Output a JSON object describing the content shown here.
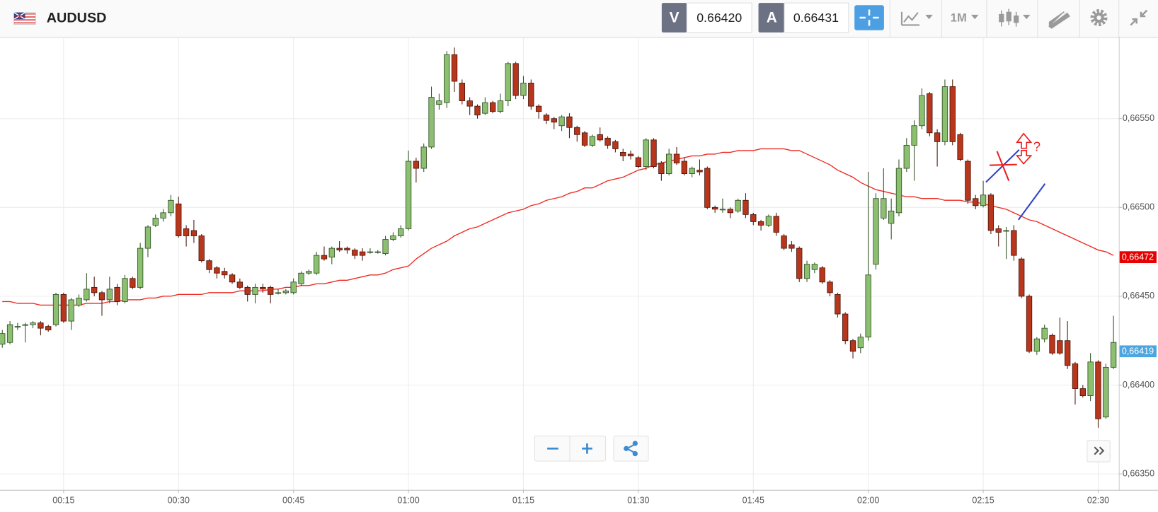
{
  "toolbar": {
    "symbol": "AUDUSD",
    "sell_label": "V",
    "sell_price": "0.66420",
    "buy_label": "A",
    "buy_price": "0.66431",
    "timeframe": "1M"
  },
  "chart_data": {
    "type": "candlestick",
    "categories": [
      null,
      null,
      null,
      null,
      null,
      null,
      null,
      null,
      "00:15",
      null,
      null,
      null,
      null,
      null,
      null,
      null,
      null,
      null,
      null,
      null,
      null,
      null,
      null,
      "00:30",
      null,
      null,
      null,
      null,
      null,
      null,
      null,
      null,
      null,
      null,
      null,
      null,
      null,
      null,
      "00:45",
      null,
      null,
      null,
      null,
      null,
      null,
      null,
      null,
      null,
      null,
      null,
      null,
      null,
      null,
      "01:00",
      null,
      null,
      null,
      null,
      null,
      null,
      null,
      null,
      null,
      null,
      null,
      null,
      null,
      null,
      "01:15",
      null,
      null,
      null,
      null,
      null,
      null,
      null,
      null,
      null,
      null,
      null,
      null,
      null,
      null,
      "01:30",
      null,
      null,
      null,
      null,
      null,
      null,
      null,
      null,
      null,
      null,
      null,
      null,
      null,
      null,
      "01:45",
      null,
      null,
      null,
      null,
      null,
      null,
      null,
      null,
      null,
      null,
      null,
      null,
      null,
      null,
      "02:00",
      null,
      null,
      null,
      null,
      null,
      null,
      null,
      null,
      null,
      null,
      null,
      null,
      null,
      null,
      "02:15",
      null,
      null,
      null,
      null,
      null,
      null,
      null,
      null,
      null,
      null,
      null,
      null,
      null,
      null,
      "02:30",
      null,
      null
    ],
    "open": [
      0.66423,
      0.66424,
      0.66433,
      0.66434,
      0.66434,
      0.66435,
      0.66433,
      0.66434,
      0.66451,
      0.66436,
      0.66445,
      0.66448,
      0.66455,
      0.66452,
      0.66448,
      0.66455,
      0.66447,
      0.6646,
      0.66455,
      0.66477,
      0.6649,
      0.66494,
      0.66497,
      0.66502,
      0.66488,
      0.66487,
      0.66484,
      0.6647,
      0.66466,
      0.66464,
      0.66462,
      0.66458,
      0.66455,
      0.66451,
      0.66455,
      0.66455,
      0.66452,
      0.66452,
      0.66452,
      0.66457,
      0.66463,
      0.66463,
      0.66473,
      0.66472,
      0.66477,
      0.66477,
      0.66476,
      0.66475,
      0.66475,
      0.66475,
      0.66474,
      0.66482,
      0.66484,
      0.66488,
      0.66526,
      0.66522,
      0.66534,
      0.66558,
      0.66559,
      0.66586,
      0.6657,
      0.6656,
      0.66557,
      0.66553,
      0.66559,
      0.66554,
      0.6656,
      0.66581,
      0.66563,
      0.6657,
      0.66557,
      0.66552,
      0.6655,
      0.66546,
      0.66551,
      0.66545,
      0.66542,
      0.66535,
      0.66541,
      0.66539,
      0.66537,
      0.66531,
      0.6653,
      0.66528,
      0.66523,
      0.66538,
      0.66525,
      0.66519,
      0.6653,
      0.66526,
      0.66519,
      0.66521,
      0.66522,
      0.665,
      0.66499,
      0.66499,
      0.66498,
      0.66504,
      0.66496,
      0.66492,
      0.6649,
      0.66495,
      0.66484,
      0.66479,
      0.66477,
      0.6646,
      0.66465,
      0.66466,
      0.66458,
      0.66451,
      0.6644,
      0.66425,
      0.66421,
      0.66427,
      0.66468,
      0.66494,
      0.66491,
      0.66497,
      0.66522,
      0.66535,
      0.66546,
      0.66564,
      0.66542,
      0.66537,
      0.66568,
      0.66541,
      0.66526,
      0.66505,
      0.66501,
      0.66507,
      0.66488,
      0.66487,
      0.66487,
      0.66471,
      0.6645,
      0.66419,
      0.66426,
      0.66428,
      0.66425,
      0.66425,
      0.66412,
      0.66398,
      0.66394,
      0.66413,
      0.66382,
      0.6641
    ],
    "high": [
      0.66431,
      0.66436,
      0.66435,
      0.66435,
      0.66436,
      0.66436,
      0.66434,
      0.66452,
      0.66452,
      0.66449,
      0.66451,
      0.66463,
      0.66461,
      0.66453,
      0.66461,
      0.66457,
      0.66462,
      0.66461,
      0.6648,
      0.6649,
      0.66496,
      0.66499,
      0.66507,
      0.66506,
      0.6649,
      0.66493,
      0.66485,
      0.66471,
      0.66467,
      0.66466,
      0.66463,
      0.6646,
      0.66456,
      0.66457,
      0.66457,
      0.66456,
      0.66454,
      0.66454,
      0.6646,
      0.66464,
      0.66465,
      0.66475,
      0.66478,
      0.66478,
      0.66481,
      0.66478,
      0.66477,
      0.66477,
      0.66477,
      0.66476,
      0.66484,
      0.66486,
      0.6649,
      0.66532,
      0.66528,
      0.66536,
      0.66568,
      0.66564,
      0.66588,
      0.6659,
      0.66572,
      0.66562,
      0.66558,
      0.66562,
      0.6656,
      0.66564,
      0.66582,
      0.66582,
      0.66574,
      0.66572,
      0.66558,
      0.66553,
      0.66551,
      0.66552,
      0.66553,
      0.66546,
      0.66543,
      0.66541,
      0.66545,
      0.6654,
      0.66538,
      0.66533,
      0.66532,
      0.66529,
      0.66539,
      0.66539,
      0.66526,
      0.66533,
      0.66534,
      0.66528,
      0.66523,
      0.66527,
      0.66523,
      0.66501,
      0.66505,
      0.665,
      0.66505,
      0.66508,
      0.66497,
      0.66493,
      0.66496,
      0.66497,
      0.66485,
      0.66481,
      0.66478,
      0.6647,
      0.66469,
      0.66467,
      0.66459,
      0.66452,
      0.66441,
      0.66426,
      0.66429,
      0.6652,
      0.66508,
      0.66522,
      0.66505,
      0.66527,
      0.66539,
      0.66549,
      0.66567,
      0.66565,
      0.66544,
      0.66572,
      0.66572,
      0.66542,
      0.66527,
      0.66507,
      0.66515,
      0.66508,
      0.6649,
      0.66489,
      0.6649,
      0.66472,
      0.66451,
      0.66427,
      0.66434,
      0.66429,
      0.66438,
      0.66436,
      0.66413,
      0.664,
      0.66418,
      0.66414,
      0.66412,
      0.66439
    ],
    "low": [
      0.66421,
      0.66423,
      0.66431,
      0.66424,
      0.66432,
      0.66428,
      0.6643,
      0.66433,
      0.66435,
      0.66431,
      0.66444,
      0.66447,
      0.6645,
      0.66439,
      0.66446,
      0.66445,
      0.66446,
      0.66454,
      0.66454,
      0.66472,
      0.66489,
      0.66492,
      0.66495,
      0.66483,
      0.66478,
      0.6648,
      0.66469,
      0.66463,
      0.6646,
      0.6646,
      0.66457,
      0.66454,
      0.66447,
      0.66446,
      0.66452,
      0.66446,
      0.66451,
      0.66451,
      0.66451,
      0.66456,
      0.66462,
      0.66462,
      0.6647,
      0.66468,
      0.66475,
      0.66474,
      0.66471,
      0.6647,
      0.66474,
      0.66474,
      0.66473,
      0.66481,
      0.66483,
      0.66487,
      0.66514,
      0.6652,
      0.66533,
      0.66555,
      0.66556,
      0.66565,
      0.66558,
      0.66552,
      0.6655,
      0.66552,
      0.66553,
      0.66553,
      0.66557,
      0.66561,
      0.66561,
      0.66555,
      0.6655,
      0.66547,
      0.66544,
      0.66543,
      0.66539,
      0.66537,
      0.66534,
      0.66534,
      0.66537,
      0.66533,
      0.66531,
      0.66526,
      0.66527,
      0.66522,
      0.66521,
      0.66522,
      0.66515,
      0.66518,
      0.66524,
      0.66518,
      0.66517,
      0.66518,
      0.66499,
      0.66497,
      0.66497,
      0.66494,
      0.66497,
      0.66494,
      0.6649,
      0.66487,
      0.66489,
      0.66484,
      0.66476,
      0.66475,
      0.66458,
      0.66458,
      0.66463,
      0.66457,
      0.6645,
      0.66438,
      0.66423,
      0.66415,
      0.66418,
      0.66425,
      0.66465,
      0.66493,
      0.66482,
      0.66495,
      0.6652,
      0.66515,
      0.66544,
      0.6654,
      0.66523,
      0.66535,
      0.66535,
      0.66526,
      0.66502,
      0.66499,
      0.665,
      0.66485,
      0.66478,
      0.66471,
      0.6647,
      0.66449,
      0.66418,
      0.66417,
      0.66424,
      0.66417,
      0.66417,
      0.66409,
      0.66389,
      0.66393,
      0.66391,
      0.66376,
      0.66381,
      0.66409
    ],
    "close": [
      0.66429,
      0.66434,
      0.66433,
      0.66434,
      0.66435,
      0.66432,
      0.66431,
      0.66451,
      0.66436,
      0.66448,
      0.66449,
      0.66454,
      0.66452,
      0.66448,
      0.66454,
      0.66447,
      0.6646,
      0.66455,
      0.66477,
      0.66489,
      0.66494,
      0.66497,
      0.66504,
      0.66484,
      0.66484,
      0.66484,
      0.6647,
      0.66465,
      0.66463,
      0.66462,
      0.66458,
      0.66455,
      0.66451,
      0.66455,
      0.66454,
      0.66451,
      0.66452,
      0.66453,
      0.66458,
      0.66463,
      0.66464,
      0.66473,
      0.66471,
      0.66477,
      0.66476,
      0.66476,
      0.66473,
      0.66473,
      0.66475,
      0.66475,
      0.66482,
      0.66484,
      0.66488,
      0.66526,
      0.66522,
      0.66534,
      0.66562,
      0.6656,
      0.66586,
      0.66571,
      0.6656,
      0.66557,
      0.66552,
      0.66559,
      0.66554,
      0.6656,
      0.66581,
      0.66563,
      0.6657,
      0.66557,
      0.66554,
      0.66549,
      0.66548,
      0.66551,
      0.66545,
      0.66541,
      0.66535,
      0.6654,
      0.66538,
      0.66535,
      0.66533,
      0.66529,
      0.66529,
      0.66523,
      0.66538,
      0.66523,
      0.66519,
      0.6653,
      0.66525,
      0.66519,
      0.66522,
      0.6652,
      0.665,
      0.66499,
      0.66499,
      0.66497,
      0.66504,
      0.66496,
      0.66492,
      0.6649,
      0.66495,
      0.66486,
      0.66477,
      0.66477,
      0.6646,
      0.66468,
      0.66468,
      0.66458,
      0.66452,
      0.6644,
      0.66425,
      0.66419,
      0.66427,
      0.66462,
      0.66505,
      0.66505,
      0.66498,
      0.66522,
      0.66535,
      0.66546,
      0.66563,
      0.66542,
      0.66537,
      0.66568,
      0.66537,
      0.66527,
      0.66504,
      0.66501,
      0.66507,
      0.66487,
      0.66486,
      0.66487,
      0.66473,
      0.6645,
      0.66419,
      0.66426,
      0.66432,
      0.66418,
      0.66418,
      0.66411,
      0.66398,
      0.66394,
      0.66413,
      0.66381,
      0.6641,
      0.66424
    ],
    "up_color": "#8cbf70",
    "down_color": "#b8361b",
    "ma": {
      "color": "#ee2a22",
      "values": [
        0.66447,
        0.66447,
        0.66446,
        0.66446,
        0.66446,
        0.66445,
        0.66445,
        0.66445,
        0.66445,
        0.66445,
        0.66445,
        0.66446,
        0.66446,
        0.66446,
        0.66447,
        0.66447,
        0.66448,
        0.66448,
        0.66448,
        0.66449,
        0.66449,
        0.6645,
        0.6645,
        0.66451,
        0.66451,
        0.66451,
        0.66451,
        0.66452,
        0.66452,
        0.66452,
        0.66452,
        0.66453,
        0.66453,
        0.66453,
        0.66453,
        0.66454,
        0.66454,
        0.66455,
        0.66455,
        0.66456,
        0.66456,
        0.66457,
        0.66457,
        0.66458,
        0.66459,
        0.66459,
        0.6646,
        0.66461,
        0.66462,
        0.66462,
        0.66463,
        0.66465,
        0.66466,
        0.66467,
        0.66471,
        0.66474,
        0.66477,
        0.66479,
        0.66481,
        0.66484,
        0.66486,
        0.66488,
        0.66489,
        0.66491,
        0.66493,
        0.66495,
        0.66497,
        0.66498,
        0.66499,
        0.66501,
        0.66502,
        0.66504,
        0.66505,
        0.66506,
        0.66508,
        0.66509,
        0.66511,
        0.66511,
        0.66513,
        0.66515,
        0.66516,
        0.66517,
        0.66519,
        0.66521,
        0.66522,
        0.66524,
        0.66525,
        0.66526,
        0.66527,
        0.66528,
        0.66529,
        0.66529,
        0.6653,
        0.6653,
        0.66531,
        0.66531,
        0.66532,
        0.66532,
        0.66532,
        0.66533,
        0.66533,
        0.66533,
        0.66533,
        0.66532,
        0.66532,
        0.6653,
        0.66528,
        0.66526,
        0.66524,
        0.66521,
        0.66519,
        0.66517,
        0.66514,
        0.66512,
        0.6651,
        0.66509,
        0.66508,
        0.66507,
        0.66506,
        0.66506,
        0.66505,
        0.66505,
        0.66505,
        0.66504,
        0.66504,
        0.66504,
        0.66503,
        0.66503,
        0.66502,
        0.66501,
        0.665,
        0.66499,
        0.66497,
        0.66495,
        0.66493,
        0.66492,
        0.6649,
        0.66488,
        0.66486,
        0.66484,
        0.66482,
        0.6648,
        0.66478,
        0.66476,
        0.66475,
        0.66473
      ]
    },
    "ylim": [
      0.66341,
      0.66596
    ],
    "yticks": [
      {
        "value": 0.6635,
        "label": "0,66350"
      },
      {
        "value": 0.664,
        "label": "0,66400"
      },
      {
        "value": 0.6645,
        "label": "0,66450"
      },
      {
        "value": 0.665,
        "label": "0,66500"
      },
      {
        "value": 0.6655,
        "label": "0,66550"
      }
    ],
    "grid": true,
    "price_tags": [
      {
        "value": 0.66472,
        "label": "0,66472",
        "color": "#e80000"
      },
      {
        "value": 0.66419,
        "label": "0,66419",
        "color": "#4da6df"
      }
    ],
    "drawings": {
      "question": "?"
    }
  }
}
